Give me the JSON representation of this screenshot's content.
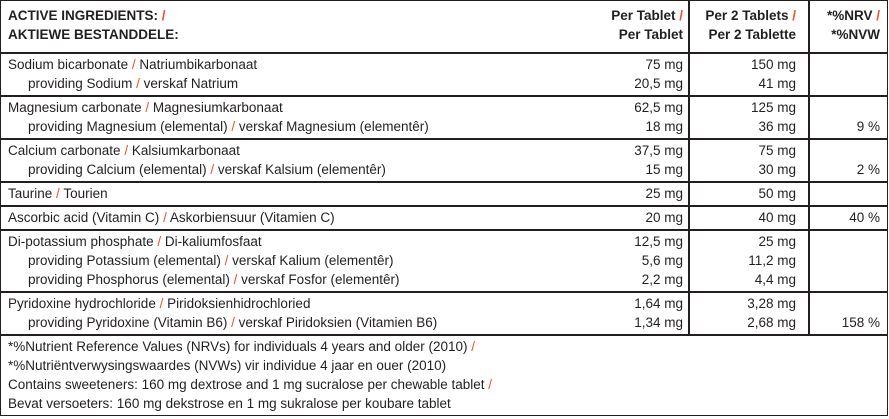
{
  "separator": "/",
  "header": {
    "ingredients": [
      "ACTIVE INGREDIENTS:",
      "AKTIEWE BESTANDDELE:"
    ],
    "per_tablet": [
      "Per Tablet",
      "Per Tablet"
    ],
    "per_2_tablets": [
      "Per 2 Tablets",
      "Per 2 Tablette"
    ],
    "nrv": [
      "*%NRV",
      "*%NVW"
    ]
  },
  "rows": [
    {
      "lines": [
        {
          "en": "Sodium bicarbonate",
          "af": "Natriumbikarbonaat",
          "per_tablet": "75 mg",
          "per_2_tablets": "150 mg"
        },
        {
          "en": "providing Sodium",
          "af": "verskaf Natrium",
          "per_tablet": "20,5 mg",
          "per_2_tablets": "41 mg"
        }
      ]
    },
    {
      "lines": [
        {
          "en": "Magnesium carbonate",
          "af": "Magnesiumkarbonaat",
          "per_tablet": "62,5 mg",
          "per_2_tablets": "125 mg"
        },
        {
          "en": "providing Magnesium (elemental)",
          "af": "verskaf Magnesium (elementêr)",
          "per_tablet": "18 mg",
          "per_2_tablets": "36 mg",
          "nrv": "9 %"
        }
      ]
    },
    {
      "lines": [
        {
          "en": "Calcium carbonate",
          "af": "Kalsiumkarbonaat",
          "per_tablet": "37,5 mg",
          "per_2_tablets": "75 mg"
        },
        {
          "en": "providing Calcium (elemental)",
          "af": "verskaf Kalsium (elementêr)",
          "per_tablet": "15 mg",
          "per_2_tablets": "30 mg",
          "nrv": "2 %"
        }
      ]
    },
    {
      "lines": [
        {
          "en": "Taurine",
          "af": "Tourien",
          "per_tablet": "25 mg",
          "per_2_tablets": "50 mg"
        }
      ]
    },
    {
      "lines": [
        {
          "en": "Ascorbic acid (Vitamin C)",
          "af": "Askorbiensuur (Vitamien C)",
          "per_tablet": "20 mg",
          "per_2_tablets": "40 mg",
          "nrv": "40 %"
        }
      ]
    },
    {
      "lines": [
        {
          "en": "Di-potassium phosphate",
          "af": "Di-kaliumfosfaat",
          "per_tablet": "12,5 mg",
          "per_2_tablets": "25 mg"
        },
        {
          "en": "providing Potassium (elemental)",
          "af": "verskaf Kalium (elementêr)",
          "per_tablet": "5,6 mg",
          "per_2_tablets": "11,2 mg"
        },
        {
          "en": "providing Phosphorus (elemental)",
          "af": "verskaf Fosfor (elementêr)",
          "per_tablet": "2,2 mg",
          "per_2_tablets": "4,4 mg"
        }
      ]
    },
    {
      "lines": [
        {
          "en": "Pyridoxine hydrochloride",
          "af": "Piridoksienhidrochloried",
          "per_tablet": "1,64 mg",
          "per_2_tablets": "3,28 mg"
        },
        {
          "en": "providing Pyridoxine (Vitamin B6)",
          "af": "verskaf Piridoksien (Vitamien B6)",
          "per_tablet": "1,34 mg",
          "per_2_tablets": "2,68 mg",
          "nrv": "158 %"
        }
      ]
    }
  ],
  "footnotes": [
    {
      "en": "*%Nutrient Reference Values (NRVs) for individuals 4 years and older (2010)",
      "af": "*%Nutriëntverwysingswaardes (NVWs) vir individue 4 jaar en ouer (2010)"
    },
    {
      "en": "Contains sweeteners: 160 mg dextrose and 1 mg sucralose per chewable tablet",
      "af": "Bevat versoeters: 160 mg dekstrose en 1 mg sukralose per koubare tablet"
    }
  ]
}
